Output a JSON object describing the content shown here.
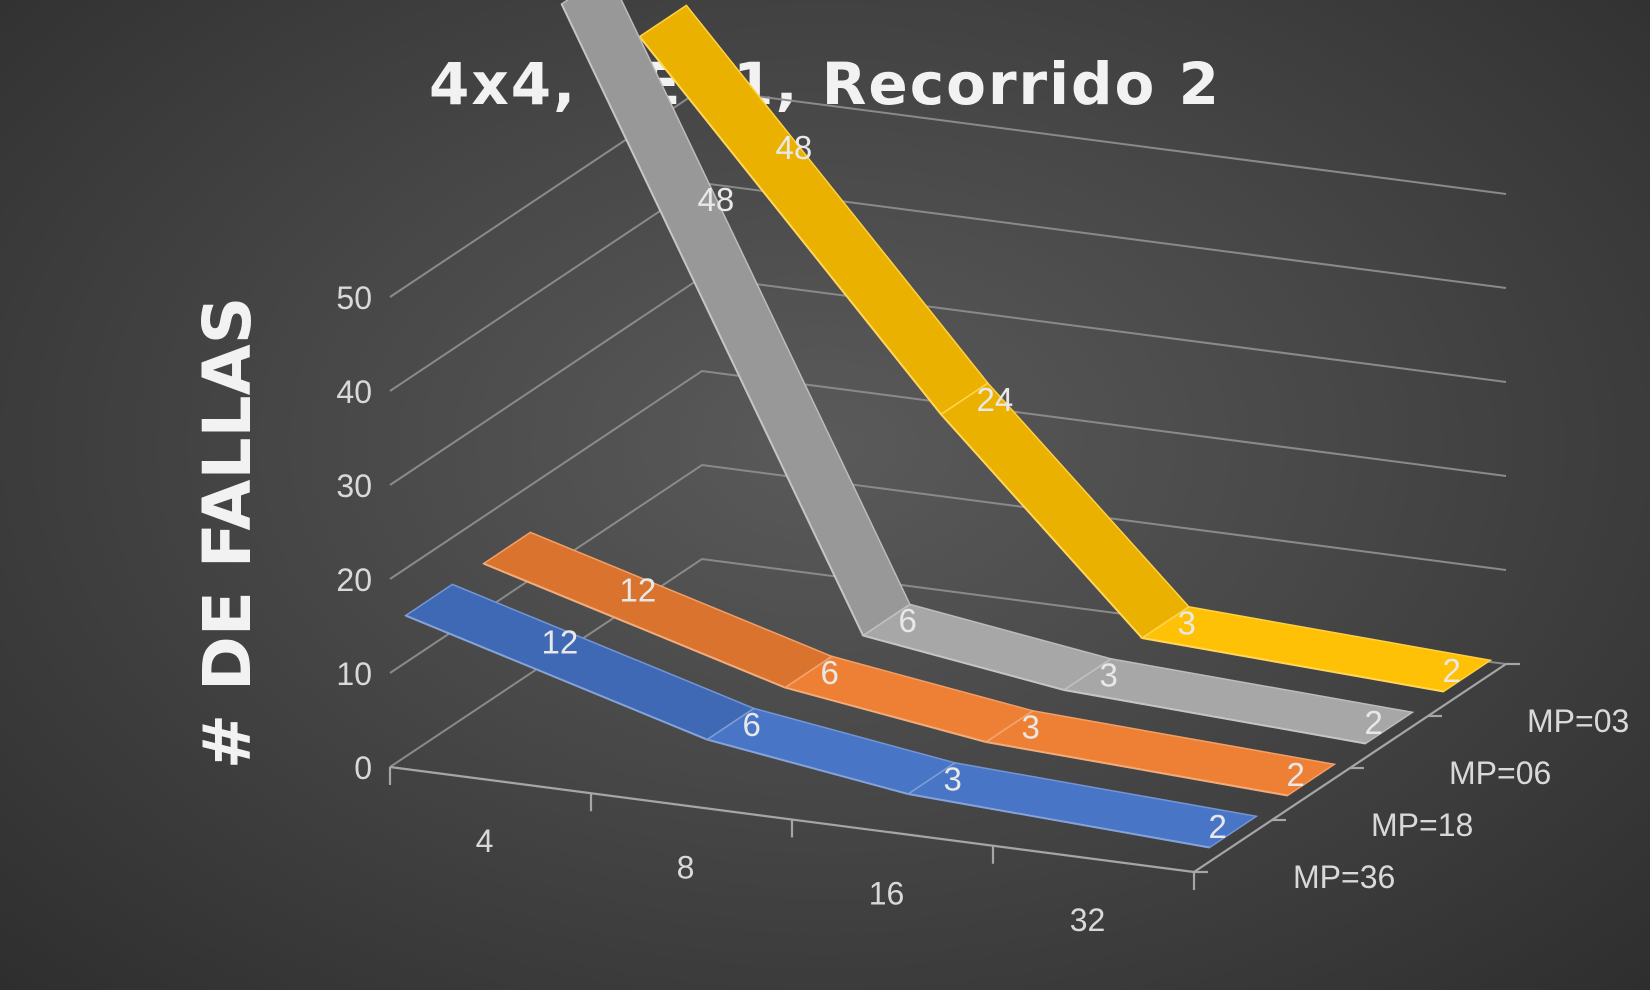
{
  "chart_data": {
    "type": "line",
    "title": "4x4, TE=1, Recorrido 2",
    "ylabel": "# DE FALLAS",
    "xlabel": "",
    "categories": [
      "4",
      "8",
      "16",
      "32"
    ],
    "yticks": [
      "0",
      "10",
      "20",
      "30",
      "40",
      "50"
    ],
    "ylim": [
      0,
      50
    ],
    "depth_axis": "3d-series",
    "series": [
      {
        "name": "MP=36",
        "values": [
          12,
          6,
          3,
          2
        ],
        "color": "#4472c4"
      },
      {
        "name": "MP=18",
        "values": [
          12,
          6,
          3,
          2
        ],
        "color": "#ed7d31"
      },
      {
        "name": "MP=06",
        "values": [
          48,
          6,
          3,
          2
        ],
        "color": "#a5a5a5"
      },
      {
        "name": "MP=03",
        "values": [
          48,
          24,
          3,
          2
        ],
        "color": "#ffc000"
      }
    ],
    "grid": true,
    "data_labels": true
  }
}
